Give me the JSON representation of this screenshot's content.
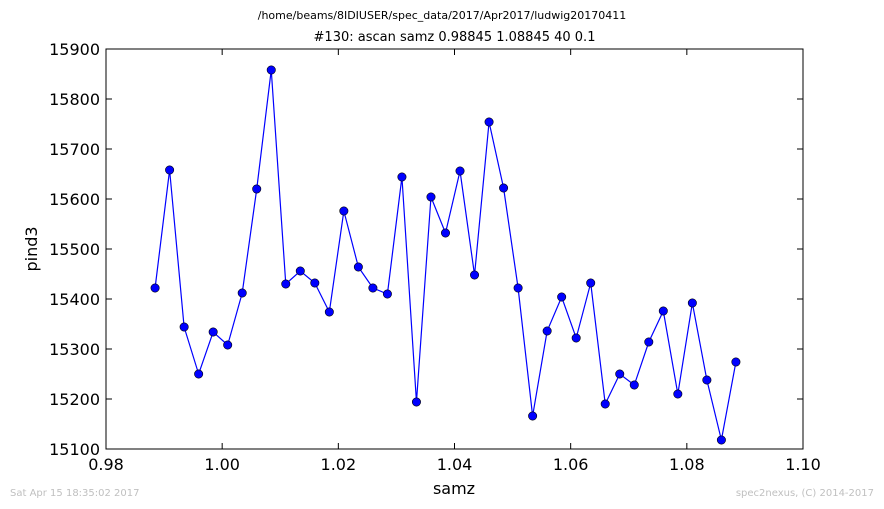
{
  "header": {
    "path": "/home/beams/8IDIUSER/spec_data/2017/Apr2017/ludwig20170411"
  },
  "footer": {
    "timestamp": "Sat Apr 15 18:35:02 2017",
    "credit": "spec2nexus, (C) 2014-2017"
  },
  "chart_data": {
    "type": "line",
    "title": "#130: ascan  samz 0.98845 1.08845  40 0.1",
    "xlabel": "samz",
    "ylabel": "pind3",
    "xlim": [
      0.98,
      1.1
    ],
    "ylim": [
      15100,
      15900
    ],
    "x_ticks": [
      "0.98",
      "1.00",
      "1.02",
      "1.04",
      "1.06",
      "1.08",
      "1.10"
    ],
    "y_ticks": [
      "15100",
      "15200",
      "15300",
      "15400",
      "15500",
      "15600",
      "15700",
      "15800",
      "15900"
    ],
    "grid": false,
    "line_color": "#0000ff",
    "marker": "circle",
    "x": [
      0.98845,
      0.99095,
      0.99345,
      0.99595,
      0.99845,
      1.00095,
      1.00345,
      1.00595,
      1.00845,
      1.01095,
      1.01345,
      1.01595,
      1.01845,
      1.02095,
      1.02345,
      1.02595,
      1.02845,
      1.03095,
      1.03345,
      1.03595,
      1.03845,
      1.04095,
      1.04345,
      1.04595,
      1.04845,
      1.05095,
      1.05345,
      1.05595,
      1.05845,
      1.06095,
      1.06345,
      1.06595,
      1.06845,
      1.07095,
      1.07345,
      1.07595,
      1.07845,
      1.08095,
      1.08345,
      1.08595,
      1.08845
    ],
    "y": [
      15422,
      15658,
      15344,
      15250,
      15334,
      15308,
      15412,
      15620,
      15858,
      15430,
      15456,
      15432,
      15374,
      15576,
      15464,
      15422,
      15410,
      15644,
      15194,
      15604,
      15532,
      15656,
      15448,
      15754,
      15622,
      15422,
      15166,
      15336,
      15404,
      15322,
      15432,
      15190,
      15250,
      15228,
      15314,
      15376,
      15210,
      15392,
      15238,
      15118,
      15274
    ]
  }
}
